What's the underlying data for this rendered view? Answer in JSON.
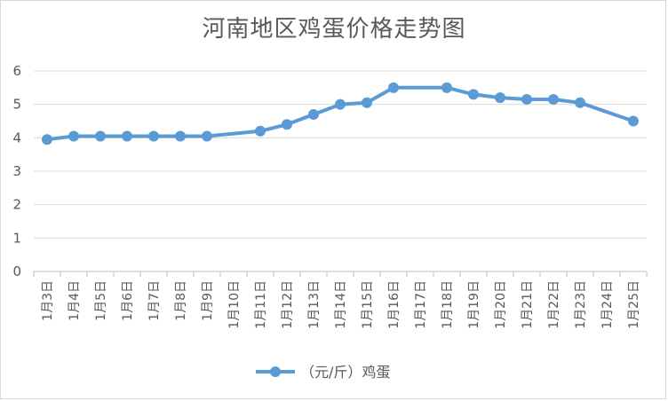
{
  "chart_data": {
    "type": "line",
    "title": "河南地区鸡蛋价格走势图",
    "categories": [
      "1月3日",
      "1月4日",
      "1月5日",
      "1月6日",
      "1月7日",
      "1月8日",
      "1月9日",
      "1月10日",
      "1月11日",
      "1月12日",
      "1月13日",
      "1月14日",
      "1月15日",
      "1月16日",
      "1月17日",
      "1月18日",
      "1月19日",
      "1月20日",
      "1月21日",
      "1月22日",
      "1月23日",
      "1月24日",
      "1月25日"
    ],
    "series": [
      {
        "name": "（元/斤）鸡蛋",
        "color": "#5b9bd5",
        "values": [
          3.95,
          4.05,
          4.05,
          4.05,
          4.05,
          4.05,
          4.05,
          null,
          4.2,
          4.4,
          4.7,
          5.0,
          5.05,
          5.5,
          null,
          5.5,
          5.3,
          5.2,
          5.15,
          5.15,
          5.05,
          null,
          4.5
        ]
      }
    ],
    "ylim": [
      0,
      6
    ],
    "yticks": [
      0,
      1,
      2,
      3,
      4,
      5,
      6
    ],
    "grid": true,
    "legend": "bottom"
  }
}
